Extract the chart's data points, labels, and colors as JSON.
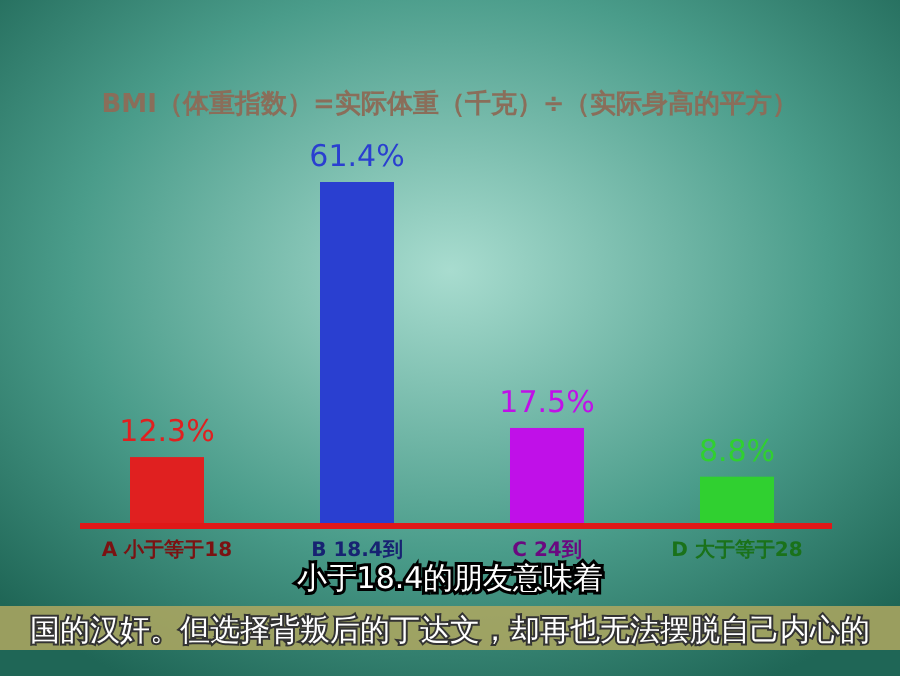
{
  "chart_data": {
    "type": "bar",
    "title": "BMI（体重指数）=实际体重（千克）÷（实际身高的平方）",
    "categories": [
      "A 小于等于18",
      "B 18.4到",
      "C 24到",
      "D 大于等于28"
    ],
    "values": [
      12.3,
      61.4,
      17.5,
      8.8
    ],
    "value_labels": [
      "12.3%",
      "61.4%",
      "17.5%",
      "8.8%"
    ],
    "colors": [
      "#e02020",
      "#2a3fd0",
      "#c010e8",
      "#30d030"
    ],
    "annotations": [
      "小于18.4的朋友意味着",
      "国的汉奸。但选择背叛后的丁达文，却再也无法摆脱自己内心的"
    ]
  }
}
